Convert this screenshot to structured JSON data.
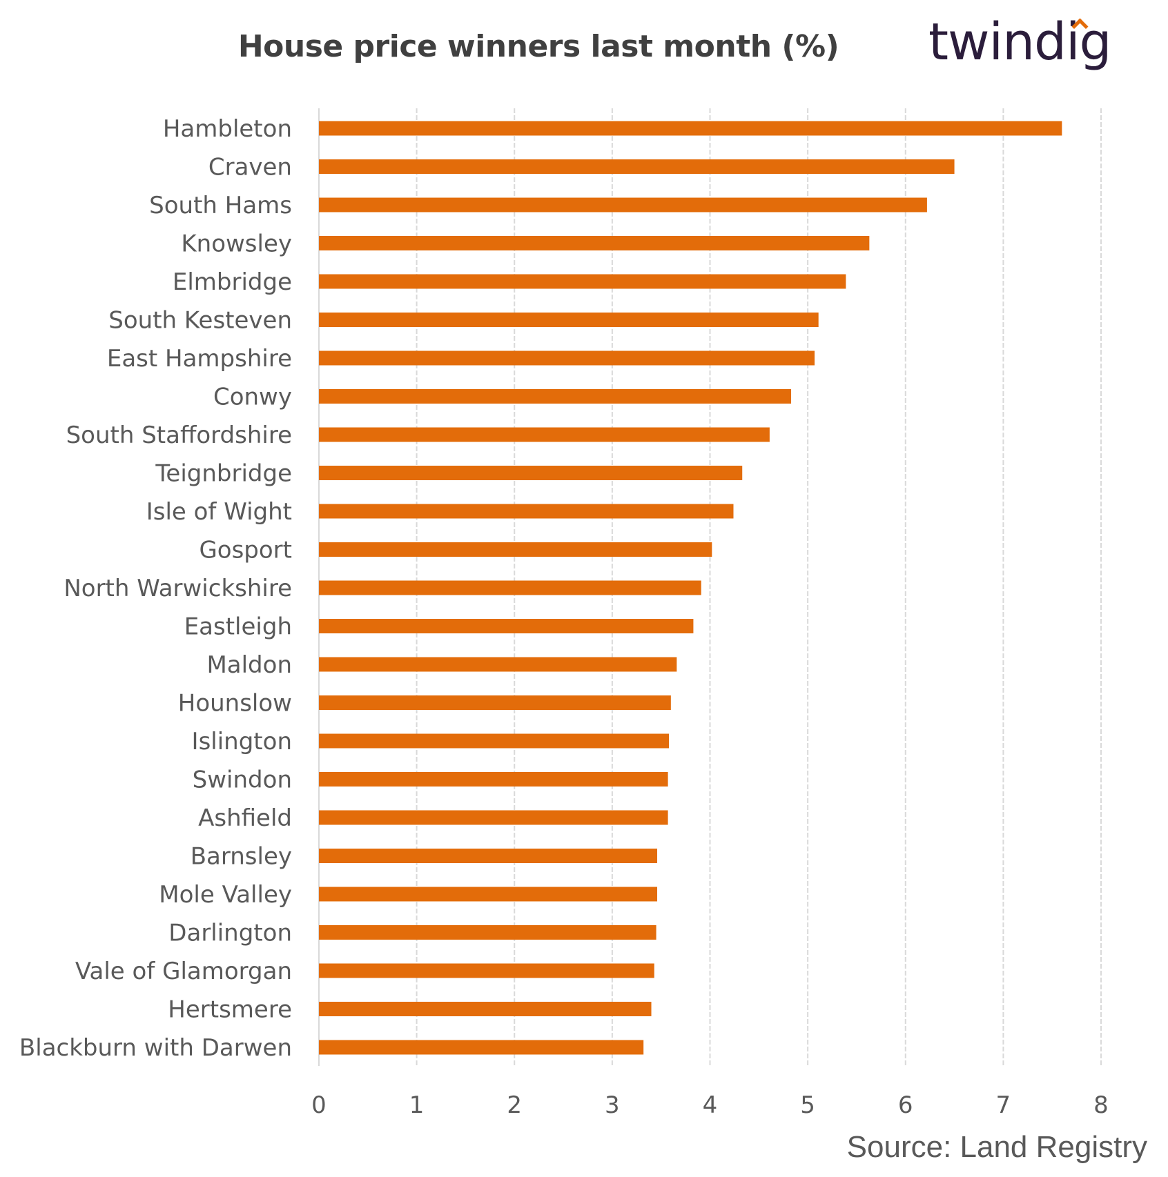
{
  "title": "House price winners last month (%)",
  "brand": "twindig",
  "source": "Source: Land Registry",
  "colors": {
    "bar": "#e36c0a",
    "grid": "#d9d9d9",
    "label": "#595959",
    "title": "#404040",
    "brand": "#2b1d3b"
  },
  "chart_data": {
    "type": "bar",
    "orientation": "horizontal",
    "title": "House price winners last month (%)",
    "xlabel": "",
    "ylabel": "",
    "xlim": [
      0,
      8
    ],
    "xticks": [
      "0",
      "1",
      "2",
      "3",
      "4",
      "5",
      "6",
      "7",
      "8"
    ],
    "grid": "vertical",
    "legend": "none",
    "categories": [
      "Hambleton",
      "Craven",
      "South Hams",
      "Knowsley",
      "Elmbridge",
      "South Kesteven",
      "East Hampshire",
      "Conwy",
      "South Staffordshire",
      "Teignbridge",
      "Isle of Wight",
      "Gosport",
      "North Warwickshire",
      "Eastleigh",
      "Maldon",
      "Hounslow",
      "Islington",
      "Swindon",
      "Ashfield",
      "Barnsley",
      "Mole Valley",
      "Darlington",
      "Vale of Glamorgan",
      "Hertsmere",
      "Blackburn with Darwen"
    ],
    "values": [
      7.6,
      6.5,
      6.22,
      5.63,
      5.39,
      5.11,
      5.07,
      4.83,
      4.61,
      4.33,
      4.24,
      4.02,
      3.91,
      3.83,
      3.66,
      3.6,
      3.58,
      3.57,
      3.57,
      3.46,
      3.46,
      3.45,
      3.43,
      3.4,
      3.32
    ]
  }
}
